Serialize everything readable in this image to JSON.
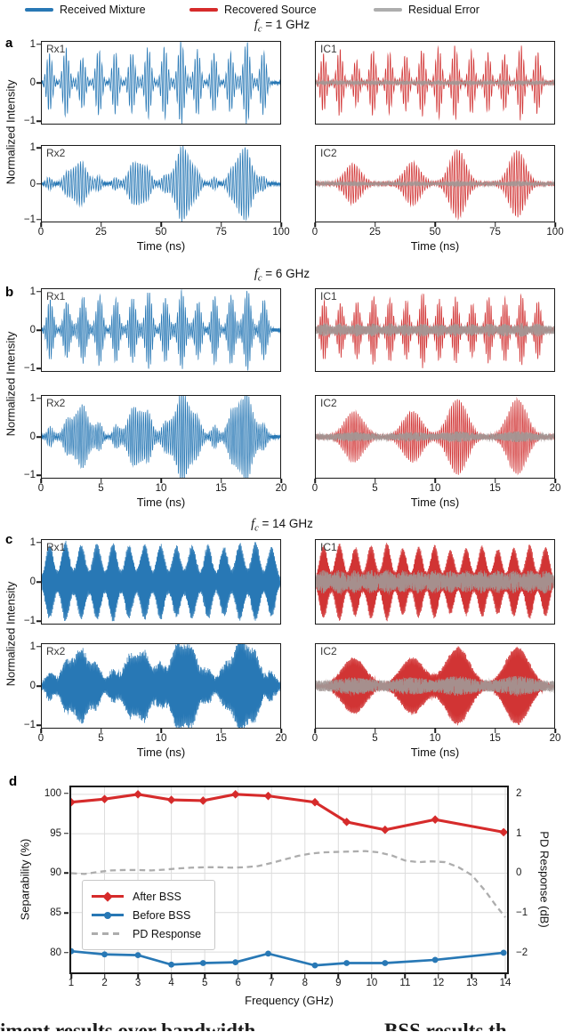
{
  "colors": {
    "blue": "#2878b5",
    "red": "#d13434",
    "residual": "#a29795",
    "chart_red": "#d62b2b",
    "chart_blue": "#2878b5",
    "pd_gray": "#adadad",
    "grid": "#dcdcdc",
    "axis": "#1a1a1a"
  },
  "top_legend": {
    "items": [
      {
        "label": "Received Mixture",
        "color_key": "blue"
      },
      {
        "label": "Recovered Source",
        "color_key": "chart_red"
      },
      {
        "label": "Residual Error",
        "color_key": "pd_gray"
      }
    ]
  },
  "panel_labels": [
    "a",
    "b",
    "c",
    "d"
  ],
  "waveform_xlabel": "Time (ns)",
  "waveform_ylabel": "Normalized Intensity",
  "waveform_yticks": [
    "1",
    "0",
    "−1"
  ],
  "chart_data": [
    {
      "id": "a",
      "type": "waveform-grid",
      "title": {
        "sym": "f",
        "sub": "c",
        "rest": " = 1 GHz"
      },
      "span_ns": 100,
      "carrier_ghz": 1,
      "xticks": [
        "0",
        "25",
        "50",
        "75",
        "100"
      ],
      "train": {
        "start": 3.2,
        "spacing": 6.9,
        "sigma": 1.2,
        "amps": [
          0.78,
          0.9,
          0.62,
          0.88,
          0.82,
          0.76,
          0.9,
          0.95,
          1.0,
          0.85,
          0.8,
          0.76,
          1.0,
          0.84
        ]
      },
      "humps": {
        "centers": [
          15.5,
          40.5,
          59.5,
          84.5
        ],
        "amps": [
          0.58,
          0.62,
          1.0,
          0.97
        ],
        "sigma": 3.4
      },
      "subplots": [
        {
          "tag": "Rx1",
          "color_key": "blue",
          "train": 1,
          "humps": 0.12,
          "noise": 0.03,
          "seed": 101
        },
        {
          "tag": "IC1",
          "color_key": "red",
          "train": 1,
          "humps": 0,
          "noise": 0.02,
          "seed": 102,
          "residual": 0.06,
          "residual_env": "train"
        },
        {
          "tag": "Rx2",
          "color_key": "blue",
          "train": 0.2,
          "humps": 0.95,
          "noise": 0.03,
          "seed": 103
        },
        {
          "tag": "IC2",
          "color_key": "red",
          "train": 0,
          "humps": 1,
          "noise": 0.02,
          "seed": 104,
          "residual": 0.08,
          "residual_env": "humps"
        }
      ]
    },
    {
      "id": "b",
      "type": "waveform-grid",
      "title": {
        "sym": "f",
        "sub": "c",
        "rest": " = 6 GHz"
      },
      "span_ns": 20,
      "carrier_ghz": 6,
      "xticks": [
        "0",
        "5",
        "10",
        "15",
        "20"
      ],
      "train": {
        "start": 0.7,
        "spacing": 1.38,
        "sigma": 0.25,
        "amps": [
          0.8,
          0.72,
          0.78,
          0.92,
          0.85,
          0.78,
          1.0,
          0.82,
          0.88,
          0.72,
          0.9,
          0.85,
          0.95,
          0.78
        ]
      },
      "humps": {
        "centers": [
          3.2,
          8.1,
          11.9,
          16.9
        ],
        "amps": [
          0.66,
          0.68,
          1.0,
          1.0
        ],
        "sigma": 0.8
      },
      "subplots": [
        {
          "tag": "Rx1",
          "color_key": "blue",
          "train": 1,
          "humps": 0.15,
          "noise": 0.05,
          "seed": 201
        },
        {
          "tag": "IC1",
          "color_key": "red",
          "train": 1,
          "humps": 0,
          "noise": 0.03,
          "seed": 202,
          "residual": 0.2,
          "residual_env": "train"
        },
        {
          "tag": "Rx2",
          "color_key": "blue",
          "train": 0.3,
          "humps": 0.95,
          "noise": 0.05,
          "seed": 203
        },
        {
          "tag": "IC2",
          "color_key": "red",
          "train": 0,
          "humps": 1,
          "noise": 0.03,
          "seed": 204,
          "residual": 0.15,
          "residual_env": "humps"
        }
      ]
    },
    {
      "id": "c",
      "type": "waveform-grid",
      "title": {
        "sym": "f",
        "sub": "c",
        "rest": " = 14 GHz"
      },
      "span_ns": 20,
      "carrier_ghz": 14,
      "xticks": [
        "0",
        "5",
        "10",
        "15",
        "20"
      ],
      "train": {
        "start": 0.65,
        "spacing": 1.33,
        "sigma": 0.33,
        "amps": [
          0.95,
          1.0,
          0.9,
          0.96,
          1.0,
          0.88,
          0.92,
          0.95,
          0.84,
          0.88,
          0.93,
          0.86,
          0.9,
          0.96,
          0.9
        ]
      },
      "humps": {
        "centers": [
          3.2,
          8.1,
          11.9,
          16.9
        ],
        "amps": [
          0.72,
          0.72,
          1.0,
          1.0
        ],
        "sigma": 1.0
      },
      "subplots": [
        {
          "tag": "Rx1",
          "color_key": "blue",
          "train": 1,
          "humps": 0.1,
          "noise": 0.05,
          "seed": 301
        },
        {
          "tag": "IC1",
          "color_key": "red",
          "train": 1,
          "humps": 0,
          "noise": 0.03,
          "seed": 302,
          "residual": 0.32,
          "residual_env": "train"
        },
        {
          "tag": "Rx2",
          "color_key": "blue",
          "train": 0.3,
          "humps": 0.95,
          "noise": 0.1,
          "seed": 303
        },
        {
          "tag": "IC2",
          "color_key": "red",
          "train": 0,
          "humps": 1,
          "noise": 0.04,
          "seed": 304,
          "residual": 0.26,
          "residual_env": "humps"
        }
      ]
    },
    {
      "id": "d",
      "type": "line",
      "xlabel": "Frequency (GHz)",
      "ylabel_left": "Separability (%)",
      "ylabel_right": "PD Response (dB)",
      "xlim": [
        1,
        14
      ],
      "ylim_left": [
        77.3,
        101
      ],
      "xticks": [
        "1",
        "2",
        "3",
        "4",
        "5",
        "6",
        "7",
        "8",
        "9",
        "10",
        "11",
        "12",
        "13",
        "14"
      ],
      "yticks_left": [
        "100",
        "95",
        "90",
        "85",
        "80"
      ],
      "yticks_right": [
        "2",
        "1",
        "0",
        "−1",
        "−2"
      ],
      "grid": true,
      "legend_position": "middle-left",
      "series": [
        {
          "name": "After BSS",
          "axis": "left",
          "color_key": "chart_red",
          "marker": "diamond",
          "x": [
            1,
            2,
            3,
            4,
            4.95,
            5.92,
            6.9,
            8.3,
            9.25,
            10.4,
            11.9,
            13.95
          ],
          "y": [
            99.0,
            99.4,
            100.0,
            99.3,
            99.2,
            100.0,
            99.8,
            99.0,
            96.5,
            95.5,
            96.8,
            95.2
          ]
        },
        {
          "name": "Before BSS",
          "axis": "left",
          "color_key": "chart_blue",
          "marker": "circle",
          "x": [
            1,
            2,
            3,
            4,
            4.95,
            5.92,
            6.9,
            8.3,
            9.25,
            10.4,
            11.9,
            13.95
          ],
          "y": [
            80.1,
            79.7,
            79.6,
            78.4,
            78.6,
            78.7,
            79.8,
            78.3,
            78.6,
            78.6,
            79.0,
            79.9
          ]
        },
        {
          "name": "PD Response",
          "axis": "right",
          "color_key": "pd_gray",
          "style": "dashed",
          "x": [
            1,
            1.4,
            1.8,
            2.2,
            2.6,
            3,
            3.4,
            3.8,
            4.2,
            4.6,
            5,
            5.4,
            5.8,
            6.2,
            6.6,
            7,
            7.4,
            7.8,
            8.2,
            8.6,
            9,
            9.4,
            9.8,
            10.2,
            10.6,
            11,
            11.4,
            11.8,
            12.2,
            12.6,
            13,
            13.4,
            13.7,
            14
          ],
          "y_db": [
            0.0,
            -0.02,
            0.03,
            0.07,
            0.08,
            0.08,
            0.07,
            0.09,
            0.12,
            0.14,
            0.15,
            0.15,
            0.14,
            0.15,
            0.18,
            0.26,
            0.35,
            0.44,
            0.5,
            0.53,
            0.54,
            0.55,
            0.56,
            0.53,
            0.45,
            0.32,
            0.28,
            0.3,
            0.28,
            0.15,
            -0.05,
            -0.45,
            -0.8,
            -1.12
          ]
        }
      ],
      "legend": [
        {
          "label": "After BSS",
          "marker": "diamond",
          "color_key": "chart_red"
        },
        {
          "label": "Before BSS",
          "marker": "circle",
          "color_key": "chart_blue"
        },
        {
          "label": "PD Response",
          "marker": "dash",
          "color_key": "pd_gray"
        }
      ]
    }
  ],
  "caption": {
    "left": "iment results over bandwidth",
    "right": "BSS results th"
  }
}
